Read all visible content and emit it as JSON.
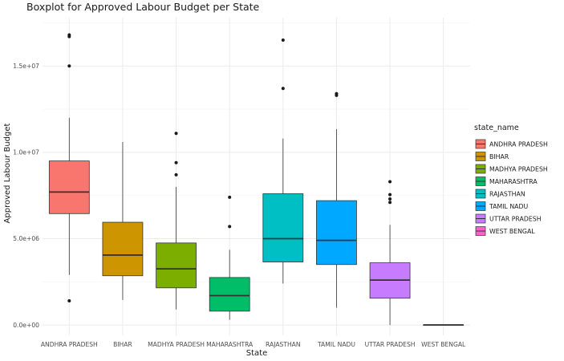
{
  "chart_data": {
    "type": "boxplot",
    "title": "Boxplot for Approved Labour Budget per State",
    "xlabel": "State",
    "ylabel": "Approved Labour Budget",
    "ylim": [
      -600000,
      17800000
    ],
    "yticks": [
      0,
      5000000,
      10000000,
      15000000
    ],
    "ytick_labels": [
      "0.0e+00",
      "5.0e+06",
      "1.0e+07",
      "1.5e+07"
    ],
    "grid": true,
    "legend_title": "state_name",
    "legend_position": "right",
    "categories": [
      "ANDHRA PRADESH",
      "BIHAR",
      "MADHYA PRADESH",
      "MAHARASHTRA",
      "RAJASTHAN",
      "TAMIL NADU",
      "UTTAR PRADESH",
      "WEST BENGAL"
    ],
    "boxes": [
      {
        "category": "ANDHRA PRADESH",
        "color": "#F8766D",
        "whisker_low": 2900000,
        "q1": 6450000,
        "median": 7700000,
        "q3": 9500000,
        "whisker_high": 12000000,
        "outliers": [
          1400000,
          15000000,
          16700000,
          16800000
        ]
      },
      {
        "category": "BIHAR",
        "color": "#CD9600",
        "whisker_low": 1450000,
        "q1": 2850000,
        "median": 4050000,
        "q3": 5950000,
        "whisker_high": 10600000,
        "outliers": []
      },
      {
        "category": "MADHYA PRADESH",
        "color": "#7CAE00",
        "whisker_low": 900000,
        "q1": 2150000,
        "median": 3250000,
        "q3": 4750000,
        "whisker_high": 8000000,
        "outliers": [
          8700000,
          9400000,
          11100000
        ]
      },
      {
        "category": "MAHARASHTRA",
        "color": "#00BE67",
        "whisker_low": 300000,
        "q1": 800000,
        "median": 1700000,
        "q3": 2750000,
        "whisker_high": 4350000,
        "outliers": [
          5700000,
          7400000
        ]
      },
      {
        "category": "RAJASTHAN",
        "color": "#00BFC4",
        "whisker_low": 2400000,
        "q1": 3650000,
        "median": 5000000,
        "q3": 7600000,
        "whisker_high": 10800000,
        "outliers": [
          13700000,
          16500000
        ]
      },
      {
        "category": "TAMIL NADU",
        "color": "#00A9FF",
        "whisker_low": 1000000,
        "q1": 3500000,
        "median": 4900000,
        "q3": 7200000,
        "whisker_high": 11350000,
        "outliers": [
          13300000,
          13400000
        ]
      },
      {
        "category": "UTTAR PRADESH",
        "color": "#C77CFF",
        "whisker_low": 0,
        "q1": 1550000,
        "median": 2600000,
        "q3": 3600000,
        "whisker_high": 5800000,
        "outliers": [
          7100000,
          7300000,
          7550000,
          8300000
        ]
      },
      {
        "category": "WEST BENGAL",
        "color": "#FF61CC",
        "whisker_low": 0,
        "q1": 0,
        "median": 0,
        "q3": 0,
        "whisker_high": 0,
        "outliers": []
      }
    ]
  }
}
